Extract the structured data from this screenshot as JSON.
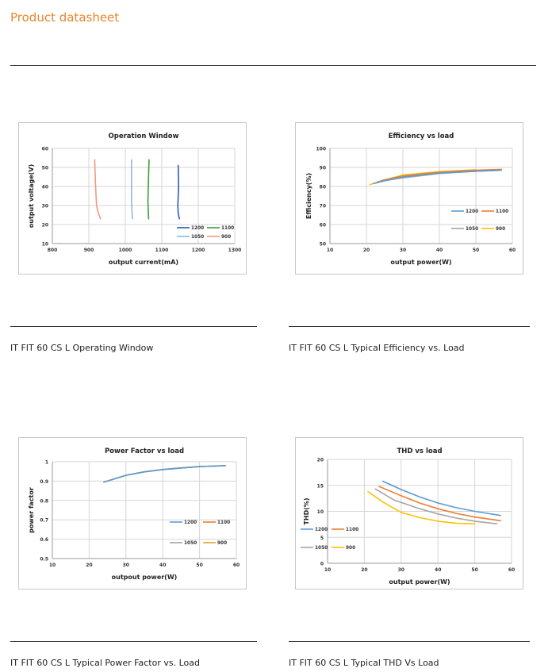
{
  "page": {
    "title": "Product datasheet"
  },
  "captions": [
    "IT FIT 60 CS L Operating Window",
    "IT FIT 60 CS L Typical Efficiency vs. Load",
    "IT FIT 60 CS L Typical Power Factor vs. Load",
    "IT FIT 60 CS L Typical THD Vs Load"
  ],
  "chart_data": [
    {
      "type": "line",
      "title": "Operation Window",
      "xlabel": "output current(mA)",
      "ylabel": "output voltage(V)",
      "xlim": [
        800,
        1300
      ],
      "ylim": [
        10,
        60
      ],
      "xticks": [
        "800",
        "900",
        "1000",
        "1100",
        "1200",
        "1300"
      ],
      "yticks": [
        "10",
        "20",
        "30",
        "40",
        "50",
        "60"
      ],
      "legend": {
        "placement": "bottom-right",
        "order": [
          "1200",
          "1100",
          "1050",
          "900"
        ]
      },
      "series": [
        {
          "name": "1200",
          "color": "#2f5cad",
          "x": [
            1145,
            1146,
            1144,
            1145,
            1148
          ],
          "y": [
            51,
            40,
            30,
            26,
            23
          ]
        },
        {
          "name": "1100",
          "color": "#3d9b3c",
          "x": [
            1065,
            1063,
            1062,
            1063,
            1064
          ],
          "y": [
            54,
            40,
            32,
            27,
            23
          ]
        },
        {
          "name": "1050",
          "color": "#8fbbe3",
          "x": [
            1017,
            1017,
            1017,
            1018,
            1020
          ],
          "y": [
            54,
            40,
            32,
            27,
            23
          ]
        },
        {
          "name": "900",
          "color": "#f09a7c",
          "x": [
            916,
            918,
            921,
            926,
            932
          ],
          "y": [
            54,
            42,
            30,
            26,
            23
          ]
        }
      ]
    },
    {
      "type": "line",
      "title": "Efficiency vs load",
      "xlabel": "output power(W)",
      "ylabel": "Efficiency(%)",
      "xlim": [
        10,
        60
      ],
      "ylim": [
        50,
        100
      ],
      "xticks": [
        "10",
        "20",
        "30",
        "40",
        "50",
        "60"
      ],
      "yticks": [
        "50",
        "60",
        "70",
        "80",
        "90",
        "100"
      ],
      "legend": {
        "placement": "right",
        "order": [
          "1200",
          "1100",
          "1050",
          "900"
        ]
      },
      "series": [
        {
          "name": "1200",
          "color": "#5b9bd5",
          "x": [
            22,
            25,
            30,
            40,
            50,
            57
          ],
          "y": [
            81.5,
            83,
            85,
            87,
            88,
            88.5
          ]
        },
        {
          "name": "1100",
          "color": "#ed7d31",
          "x": [
            24,
            30,
            40,
            50,
            57
          ],
          "y": [
            83,
            85.5,
            87.5,
            88.5,
            89
          ]
        },
        {
          "name": "1050",
          "color": "#a5a5a5",
          "x": [
            23,
            30,
            40,
            50,
            55
          ],
          "y": [
            82.5,
            84.5,
            86.8,
            88,
            88.3
          ]
        },
        {
          "name": "900",
          "color": "#ffc000",
          "x": [
            21,
            25,
            30,
            40,
            50
          ],
          "y": [
            81,
            83.5,
            86,
            87.8,
            88.8
          ]
        }
      ]
    },
    {
      "type": "line",
      "title": "Power Factor vs load",
      "xlabel": "outpout power(W)",
      "ylabel": "power factor",
      "xlim": [
        10,
        60
      ],
      "ylim": [
        0.5,
        1
      ],
      "xticks": [
        "10",
        "20",
        "30",
        "40",
        "50",
        "60"
      ],
      "yticks": [
        "0.5",
        "0.6",
        "0.7",
        "0.8",
        "0.9",
        "1"
      ],
      "legend": {
        "placement": "right",
        "order": [
          "1200",
          "1100",
          "1050",
          "900"
        ]
      },
      "series": [
        {
          "name": "1200",
          "color": "#5b9bd5",
          "x": [
            24,
            30,
            35,
            40,
            45,
            50,
            57
          ],
          "y": [
            0.895,
            0.93,
            0.948,
            0.96,
            0.968,
            0.975,
            0.98
          ]
        },
        {
          "name": "1100",
          "color": "#ed7d31",
          "x": [
            24,
            30,
            35,
            40,
            45,
            50,
            57
          ],
          "y": [
            0.895,
            0.93,
            0.948,
            0.96,
            0.968,
            0.975,
            0.98
          ]
        },
        {
          "name": "1050",
          "color": "#a5a5a5",
          "x": [
            24,
            30,
            35,
            40,
            45,
            50,
            57
          ],
          "y": [
            0.895,
            0.93,
            0.948,
            0.96,
            0.968,
            0.975,
            0.98
          ]
        },
        {
          "name": "900",
          "color": "#e4a227",
          "x": [
            24,
            30,
            35,
            40,
            45,
            50,
            57
          ],
          "y": [
            0.895,
            0.93,
            0.948,
            0.96,
            0.968,
            0.975,
            0.98
          ]
        }
      ]
    },
    {
      "type": "line",
      "title": "THD vs load",
      "xlabel": "output power(W)",
      "ylabel": "THD(%)",
      "xlim": [
        10,
        60
      ],
      "ylim": [
        0,
        20
      ],
      "xticks": [
        "10",
        "20",
        "30",
        "40",
        "50",
        "60"
      ],
      "yticks": [
        "0",
        "5",
        "10",
        "15",
        "20"
      ],
      "legend": {
        "placement": "left",
        "order": [
          "1200",
          "1100",
          "1050",
          "900"
        ]
      },
      "series": [
        {
          "name": "1200",
          "color": "#5b9bd5",
          "x": [
            25,
            30,
            35,
            40,
            45,
            50,
            57
          ],
          "y": [
            15.8,
            14.2,
            12.8,
            11.6,
            10.7,
            10.0,
            9.2
          ]
        },
        {
          "name": "1100",
          "color": "#ed7d31",
          "x": [
            24,
            30,
            35,
            40,
            45,
            50,
            57
          ],
          "y": [
            14.8,
            13.0,
            11.6,
            10.5,
            9.6,
            8.9,
            8.2
          ]
        },
        {
          "name": "1050",
          "color": "#a5a5a5",
          "x": [
            23,
            28,
            35,
            40,
            45,
            50,
            56
          ],
          "y": [
            14.3,
            12.2,
            10.5,
            9.5,
            8.7,
            8.1,
            7.6
          ]
        },
        {
          "name": "900",
          "color": "#ffc000",
          "x": [
            21,
            25,
            30,
            35,
            40,
            45,
            50
          ],
          "y": [
            13.8,
            11.8,
            9.8,
            8.8,
            8.1,
            7.7,
            7.6
          ]
        }
      ]
    }
  ]
}
